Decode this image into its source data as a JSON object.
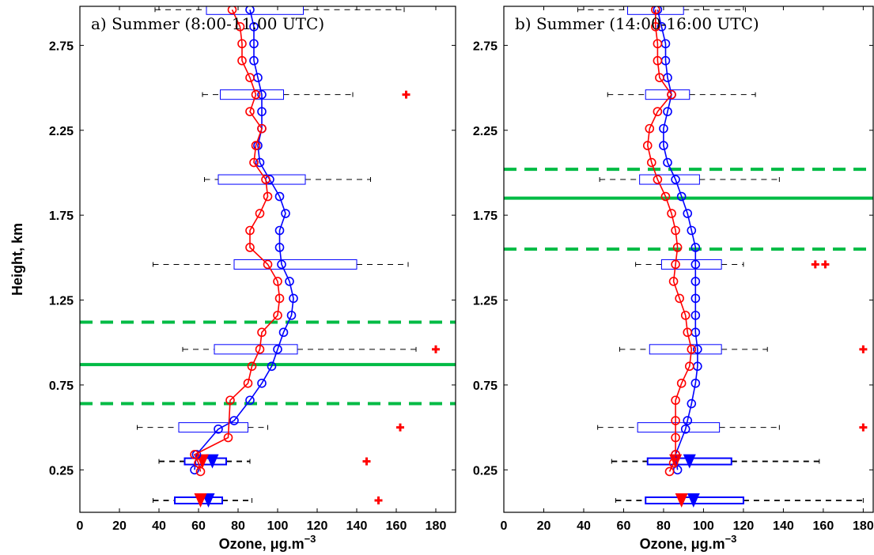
{
  "chart_data": [
    {
      "type": "profile",
      "title": "a) Summer (8:00-11:00 UTC)",
      "xlabel": "Ozone, μg.m",
      "xlabel_sup": "−3",
      "ylabel": "Height, km",
      "xlim": [
        0,
        190
      ],
      "ylim": [
        0,
        2.98
      ],
      "xticks": [
        "0",
        "20",
        "40",
        "60",
        "80",
        "100",
        "120",
        "140",
        "160",
        "180"
      ],
      "yticks": [
        "0.25",
        "0.75",
        "1.25",
        "1.75",
        "2.25",
        "2.75"
      ],
      "blue_profile": {
        "color": "#0000ff",
        "points": [
          [
            58,
            0.25
          ],
          [
            59,
            0.34
          ],
          [
            70,
            0.49
          ],
          [
            78,
            0.54
          ],
          [
            86,
            0.66
          ],
          [
            92,
            0.76
          ],
          [
            97,
            0.86
          ],
          [
            100,
            0.96
          ],
          [
            103,
            1.06
          ],
          [
            107,
            1.16
          ],
          [
            108,
            1.26
          ],
          [
            106,
            1.36
          ],
          [
            102,
            1.46
          ],
          [
            101,
            1.56
          ],
          [
            101,
            1.66
          ],
          [
            104,
            1.76
          ],
          [
            101,
            1.86
          ],
          [
            96,
            1.96
          ],
          [
            91,
            2.06
          ],
          [
            90,
            2.16
          ],
          [
            92,
            2.26
          ],
          [
            92,
            2.36
          ],
          [
            92,
            2.46
          ],
          [
            90,
            2.56
          ],
          [
            88,
            2.66
          ],
          [
            88,
            2.76
          ],
          [
            88,
            2.86
          ],
          [
            86,
            2.96
          ]
        ]
      },
      "red_profile": {
        "color": "#ff0000",
        "points": [
          [
            61,
            0.24
          ],
          [
            60,
            0.29
          ],
          [
            58,
            0.34
          ],
          [
            75,
            0.44
          ],
          [
            76,
            0.66
          ],
          [
            85,
            0.76
          ],
          [
            87,
            0.86
          ],
          [
            91,
            0.96
          ],
          [
            92,
            1.06
          ],
          [
            100,
            1.16
          ],
          [
            101,
            1.26
          ],
          [
            100,
            1.36
          ],
          [
            95,
            1.46
          ],
          [
            86,
            1.56
          ],
          [
            86,
            1.66
          ],
          [
            91,
            1.76
          ],
          [
            95,
            1.86
          ],
          [
            94,
            1.96
          ],
          [
            88,
            2.06
          ],
          [
            89,
            2.16
          ],
          [
            92,
            2.26
          ],
          [
            86,
            2.36
          ],
          [
            89,
            2.46
          ],
          [
            86,
            2.56
          ],
          [
            82,
            2.66
          ],
          [
            82,
            2.76
          ],
          [
            81,
            2.86
          ],
          [
            77,
            2.96
          ]
        ]
      },
      "boxes": [
        {
          "y": 0.07,
          "wlo": 37,
          "q1": 48,
          "q3": 72,
          "whi": 87,
          "heavy": true,
          "blue_med": 65,
          "red_med": 61
        },
        {
          "y": 0.3,
          "wlo": 40,
          "q1": 53,
          "q3": 74,
          "whi": 86,
          "heavy": true,
          "blue_med": 67,
          "red_med": 62
        },
        {
          "y": 0.5,
          "wlo": 29,
          "q1": 50,
          "q3": 85,
          "whi": 95,
          "heavy": false
        },
        {
          "y": 0.96,
          "wlo": 52,
          "q1": 68,
          "q3": 110,
          "whi": 170,
          "heavy": false
        },
        {
          "y": 1.46,
          "wlo": 37,
          "q1": 78,
          "q3": 140,
          "whi": 166,
          "heavy": false
        },
        {
          "y": 1.96,
          "wlo": 63,
          "q1": 70,
          "q3": 114,
          "whi": 147,
          "heavy": false
        },
        {
          "y": 2.46,
          "wlo": 62,
          "q1": 71,
          "q3": 103,
          "whi": 138,
          "heavy": false
        },
        {
          "y": 2.96,
          "wlo": 38,
          "q1": 64,
          "q3": 113,
          "whi": 164,
          "heavy": false
        }
      ],
      "outliers": [
        [
          151,
          0.07
        ],
        [
          145,
          0.3
        ],
        [
          162,
          0.5
        ],
        [
          180,
          0.96
        ],
        [
          165,
          2.46
        ]
      ],
      "green_lines": {
        "color": "#00bb44",
        "solid": 0.87,
        "dashed": [
          0.64,
          1.12
        ]
      }
    },
    {
      "type": "profile",
      "title": "b) Summer (14:00-16:00 UTC)",
      "xlabel": "Ozone, μg.m",
      "xlabel_sup": "−3",
      "ylabel": "",
      "xlim": [
        0,
        185
      ],
      "ylim": [
        0,
        2.98
      ],
      "xticks": [
        "0",
        "20",
        "40",
        "60",
        "80",
        "100",
        "120",
        "140",
        "160",
        "180"
      ],
      "yticks": [
        "0.25",
        "0.75",
        "1.25",
        "1.75",
        "2.25",
        "2.75"
      ],
      "blue_profile": {
        "color": "#0000ff",
        "points": [
          [
            87,
            0.25
          ],
          [
            86,
            0.34
          ],
          [
            91,
            0.49
          ],
          [
            92,
            0.54
          ],
          [
            94,
            0.64
          ],
          [
            96,
            0.76
          ],
          [
            97,
            0.86
          ],
          [
            97,
            0.96
          ],
          [
            96,
            1.06
          ],
          [
            96,
            1.16
          ],
          [
            96,
            1.26
          ],
          [
            96,
            1.36
          ],
          [
            96,
            1.46
          ],
          [
            96,
            1.56
          ],
          [
            94,
            1.66
          ],
          [
            92,
            1.76
          ],
          [
            89,
            1.86
          ],
          [
            86,
            1.96
          ],
          [
            82,
            2.06
          ],
          [
            80,
            2.16
          ],
          [
            80,
            2.26
          ],
          [
            82,
            2.36
          ],
          [
            84,
            2.46
          ],
          [
            82,
            2.56
          ],
          [
            81,
            2.66
          ],
          [
            81,
            2.76
          ],
          [
            79,
            2.86
          ],
          [
            77,
            2.96
          ]
        ]
      },
      "red_profile": {
        "color": "#ff0000",
        "points": [
          [
            83,
            0.24
          ],
          [
            85,
            0.29
          ],
          [
            86,
            0.34
          ],
          [
            86,
            0.44
          ],
          [
            86,
            0.54
          ],
          [
            86,
            0.66
          ],
          [
            89,
            0.76
          ],
          [
            93,
            0.86
          ],
          [
            94,
            0.96
          ],
          [
            92,
            1.06
          ],
          [
            91,
            1.16
          ],
          [
            88,
            1.26
          ],
          [
            85,
            1.36
          ],
          [
            86,
            1.46
          ],
          [
            87,
            1.56
          ],
          [
            86,
            1.66
          ],
          [
            84,
            1.76
          ],
          [
            81,
            1.86
          ],
          [
            77,
            1.96
          ],
          [
            74,
            2.06
          ],
          [
            72,
            2.16
          ],
          [
            73,
            2.26
          ],
          [
            77,
            2.36
          ],
          [
            84,
            2.46
          ],
          [
            78,
            2.56
          ],
          [
            77,
            2.66
          ],
          [
            77,
            2.76
          ],
          [
            76,
            2.86
          ],
          [
            76,
            2.96
          ]
        ]
      },
      "boxes": [
        {
          "y": 0.07,
          "wlo": 56,
          "q1": 71,
          "q3": 120,
          "whi": 180,
          "heavy": true,
          "blue_med": 95,
          "red_med": 89
        },
        {
          "y": 0.3,
          "wlo": 54,
          "q1": 72,
          "q3": 114,
          "whi": 158,
          "heavy": true,
          "blue_med": 93,
          "red_med": 86
        },
        {
          "y": 0.5,
          "wlo": 47,
          "q1": 67,
          "q3": 108,
          "whi": 138,
          "heavy": false
        },
        {
          "y": 0.96,
          "wlo": 58,
          "q1": 73,
          "q3": 109,
          "whi": 132,
          "heavy": false
        },
        {
          "y": 1.46,
          "wlo": 66,
          "q1": 79,
          "q3": 109,
          "whi": 120,
          "heavy": false
        },
        {
          "y": 1.96,
          "wlo": 48,
          "q1": 68,
          "q3": 98,
          "whi": 138,
          "heavy": false
        },
        {
          "y": 2.46,
          "wlo": 52,
          "q1": 71,
          "q3": 93,
          "whi": 126,
          "heavy": false
        },
        {
          "y": 2.96,
          "wlo": 37,
          "q1": 62,
          "q3": 90,
          "whi": 121,
          "heavy": false
        }
      ],
      "outliers": [
        [
          180,
          0.5
        ],
        [
          180,
          0.96
        ],
        [
          156,
          1.46
        ],
        [
          161,
          1.46
        ]
      ],
      "green_lines": {
        "color": "#00bb44",
        "solid": 1.85,
        "dashed": [
          1.55,
          2.02
        ]
      }
    }
  ]
}
